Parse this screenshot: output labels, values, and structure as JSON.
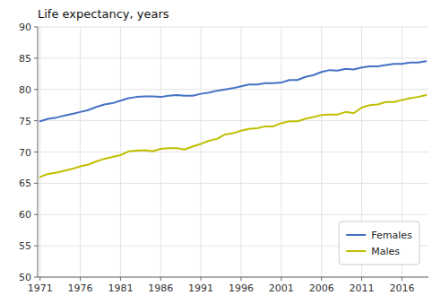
{
  "chart_data": {
    "type": "line",
    "title": "Life expectancy, years",
    "x": [
      1971,
      1972,
      1973,
      1974,
      1975,
      1976,
      1977,
      1978,
      1979,
      1980,
      1981,
      1982,
      1983,
      1984,
      1985,
      1986,
      1987,
      1988,
      1989,
      1990,
      1991,
      1992,
      1993,
      1994,
      1995,
      1996,
      1997,
      1998,
      1999,
      2000,
      2001,
      2002,
      2003,
      2004,
      2005,
      2006,
      2007,
      2008,
      2009,
      2010,
      2011,
      2012,
      2013,
      2014,
      2015,
      2016,
      2017,
      2018,
      2019
    ],
    "series": [
      {
        "name": "Females",
        "color": "#4472C4",
        "values": [
          74.9,
          75.3,
          75.5,
          75.8,
          76.1,
          76.4,
          76.7,
          77.2,
          77.6,
          77.8,
          78.2,
          78.6,
          78.8,
          78.9,
          78.9,
          78.8,
          79.0,
          79.1,
          79.0,
          79.0,
          79.3,
          79.5,
          79.8,
          80.0,
          80.2,
          80.5,
          80.8,
          80.8,
          81.0,
          81.0,
          81.1,
          81.5,
          81.5,
          82.0,
          82.3,
          82.8,
          83.1,
          83.0,
          83.3,
          83.2,
          83.5,
          83.7,
          83.7,
          83.9,
          84.1,
          84.1,
          84.3,
          84.3,
          84.5
        ]
      },
      {
        "name": "Males",
        "color": "#BFBF00",
        "values": [
          66.0,
          66.5,
          66.7,
          67.0,
          67.3,
          67.7,
          68.0,
          68.5,
          68.9,
          69.2,
          69.5,
          70.1,
          70.2,
          70.3,
          70.1,
          70.5,
          70.6,
          70.6,
          70.4,
          70.9,
          71.3,
          71.8,
          72.1,
          72.8,
          73.0,
          73.4,
          73.7,
          73.8,
          74.1,
          74.1,
          74.6,
          74.9,
          74.9,
          75.3,
          75.6,
          75.9,
          76.0,
          76.0,
          76.4,
          76.2,
          77.1,
          77.5,
          77.6,
          78.0,
          78.0,
          78.3,
          78.6,
          78.8,
          79.1
        ]
      }
    ],
    "xlim": [
      1970.7,
      2019.3
    ],
    "xticks": [
      1971,
      1976,
      1981,
      1986,
      1991,
      1996,
      2001,
      2006,
      2011,
      2016
    ],
    "ylim": [
      50,
      90
    ],
    "yticks": [
      50,
      55,
      60,
      65,
      70,
      75,
      80,
      85,
      90
    ],
    "grid": true,
    "legend": "lower right"
  }
}
